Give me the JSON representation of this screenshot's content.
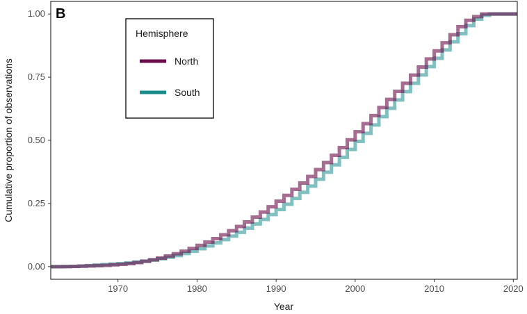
{
  "chart_data": {
    "type": "line",
    "step": true,
    "panel_label": "B",
    "title": "",
    "xlabel": "Year",
    "ylabel": "Cumulative proportion of observations",
    "xlim": [
      1961.5,
      2020.5
    ],
    "ylim": [
      -0.05,
      1.05
    ],
    "x_ticks": [
      1970,
      1980,
      1990,
      2000,
      2010,
      2020
    ],
    "y_ticks": [
      0.0,
      0.25,
      0.5,
      0.75,
      1.0
    ],
    "y_tick_labels": [
      "0.00",
      "0.25",
      "0.50",
      "0.75",
      "1.00"
    ],
    "grid": false,
    "legend": {
      "title": "Hemisphere",
      "placement": "top-left",
      "entries": [
        "North",
        "South"
      ]
    },
    "colors": {
      "north": "#6b0a48",
      "south": "#1a8c8c",
      "axis": "#333333"
    },
    "x": [
      1962,
      1963,
      1964,
      1965,
      1966,
      1967,
      1968,
      1969,
      1970,
      1971,
      1972,
      1973,
      1974,
      1975,
      1976,
      1977,
      1978,
      1979,
      1980,
      1981,
      1982,
      1983,
      1984,
      1985,
      1986,
      1987,
      1988,
      1989,
      1990,
      1991,
      1992,
      1993,
      1994,
      1995,
      1996,
      1997,
      1998,
      1999,
      2000,
      2001,
      2002,
      2003,
      2004,
      2005,
      2006,
      2007,
      2008,
      2009,
      2010,
      2011,
      2012,
      2013,
      2014,
      2015,
      2016,
      2017,
      2018,
      2019,
      2020
    ],
    "series": [
      {
        "name": "North",
        "values": [
          0.0,
          0.0,
          0.001,
          0.002,
          0.003,
          0.004,
          0.005,
          0.007,
          0.009,
          0.012,
          0.016,
          0.021,
          0.027,
          0.034,
          0.042,
          0.051,
          0.061,
          0.072,
          0.084,
          0.097,
          0.111,
          0.126,
          0.142,
          0.159,
          0.177,
          0.196,
          0.216,
          0.237,
          0.259,
          0.282,
          0.306,
          0.331,
          0.357,
          0.384,
          0.412,
          0.441,
          0.471,
          0.502,
          0.534,
          0.566,
          0.598,
          0.63,
          0.662,
          0.694,
          0.726,
          0.758,
          0.79,
          0.822,
          0.854,
          0.886,
          0.918,
          0.95,
          0.975,
          0.99,
          1.0,
          1.0,
          1.0,
          1.0,
          1.0
        ]
      },
      {
        "name": "South",
        "values": [
          0.0,
          0.001,
          0.001,
          0.002,
          0.004,
          0.006,
          0.008,
          0.01,
          0.012,
          0.015,
          0.018,
          0.022,
          0.026,
          0.031,
          0.037,
          0.044,
          0.052,
          0.061,
          0.071,
          0.082,
          0.094,
          0.107,
          0.121,
          0.136,
          0.152,
          0.169,
          0.187,
          0.206,
          0.226,
          0.247,
          0.27,
          0.294,
          0.319,
          0.346,
          0.374,
          0.403,
          0.433,
          0.464,
          0.496,
          0.528,
          0.561,
          0.594,
          0.627,
          0.66,
          0.693,
          0.726,
          0.759,
          0.792,
          0.825,
          0.858,
          0.89,
          0.922,
          0.954,
          0.98,
          0.995,
          1.0,
          1.0,
          1.0,
          1.0
        ]
      }
    ]
  }
}
